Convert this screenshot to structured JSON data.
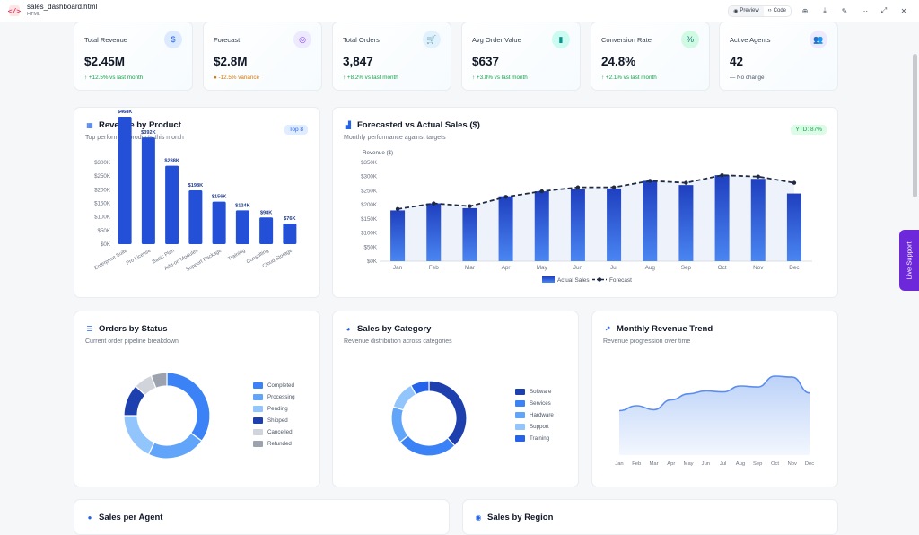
{
  "file": {
    "name": "sales_dashboard.html",
    "type": "HTML"
  },
  "toolbar": {
    "preview_label": "Preview",
    "code_label": "Code"
  },
  "live_support": "Live Support",
  "kpis": [
    {
      "label": "Total Revenue",
      "value": "$2.45M",
      "change": "↑ +12.5% vs last month",
      "icon": "dollar-icon",
      "icon_glyph": "$",
      "color": "#2563eb",
      "bg": "#dbeafe"
    },
    {
      "label": "Forecast",
      "value": "$2.8M",
      "change": "● -12.5% variance",
      "icon": "target-icon",
      "icon_glyph": "◎",
      "color": "#7c3aed",
      "bg": "#ede9fe"
    },
    {
      "label": "Total Orders",
      "value": "3,847",
      "change": "↑ +8.2% vs last month",
      "icon": "cart-icon",
      "icon_glyph": "🛒",
      "color": "#0284c7",
      "bg": "#e0f2fe"
    },
    {
      "label": "Avg Order Value",
      "value": "$637",
      "change": "↑ +3.8% vs last month",
      "icon": "receipt-icon",
      "icon_glyph": "▮",
      "color": "#0d9488",
      "bg": "#ccfbf1"
    },
    {
      "label": "Conversion Rate",
      "value": "24.8%",
      "change": "↑ +2.1% vs last month",
      "icon": "percent-icon",
      "icon_glyph": "%",
      "color": "#0f766e",
      "bg": "#d1fae5"
    },
    {
      "label": "Active Agents",
      "value": "42",
      "change": "— No change",
      "icon": "users-icon",
      "icon_glyph": "👥",
      "color": "#6d28d9",
      "bg": "#ede9fe"
    }
  ],
  "revenue_by_product": {
    "title": "Revenue by Product",
    "subtitle": "Top performing products this month",
    "badge": "Top 8"
  },
  "forecast_vs_actual": {
    "title": "Forecasted vs Actual Sales ($)",
    "subtitle": "Monthly performance against targets",
    "badge": "YTD: 87%"
  },
  "orders_by_status": {
    "title": "Orders by Status",
    "subtitle": "Current order pipeline breakdown"
  },
  "sales_by_category": {
    "title": "Sales by Category",
    "subtitle": "Revenue distribution across categories"
  },
  "monthly_trend": {
    "title": "Monthly Revenue Trend",
    "subtitle": "Revenue progression over time"
  },
  "bottom": {
    "left_title": "Sales per Agent",
    "right_title": "Sales by Region"
  },
  "chart_data": [
    {
      "type": "bar",
      "categories": [
        "Enterprise Suite",
        "Pro License",
        "Basic Plan",
        "Add-on Modules",
        "Support Package",
        "Training",
        "Consulting",
        "Cloud Storage"
      ],
      "values": [
        468,
        392,
        288,
        198,
        156,
        124,
        98,
        76
      ],
      "data_labels": [
        "$468K",
        "$392K",
        "$288K",
        "$198K",
        "$156K",
        "$124K",
        "$98K",
        "$76K"
      ],
      "ylim": [
        0,
        300
      ],
      "yticks": [
        "$300K",
        "$250K",
        "$200K",
        "$150K",
        "$100K",
        "$50K",
        "$0K"
      ],
      "color": "#2450d8"
    },
    {
      "type": "bar",
      "categories": [
        "Jan",
        "Feb",
        "Mar",
        "Apr",
        "May",
        "Jun",
        "Jul",
        "Aug",
        "Sep",
        "Oct",
        "Nov",
        "Dec"
      ],
      "ylabel": "Revenue ($)",
      "ylim": [
        0,
        350
      ],
      "yticks": [
        "$350K",
        "$300K",
        "$250K",
        "$200K",
        "$150K",
        "$100K",
        "$50K",
        "$0K"
      ],
      "series": [
        {
          "name": "Actual Sales",
          "values": [
            180,
            205,
            188,
            230,
            248,
            255,
            258,
            285,
            270,
            305,
            292,
            240
          ],
          "color": "#2a58e0"
        },
        {
          "name": "Forecast",
          "values": [
            185,
            205,
            195,
            228,
            248,
            262,
            262,
            285,
            278,
            305,
            300,
            278
          ],
          "color": "#1f2a44"
        }
      ]
    },
    {
      "type": "pie",
      "categories": [
        "Completed",
        "Processing",
        "Pending",
        "Shipped",
        "Cancelled",
        "Refunded"
      ],
      "values": [
        35,
        22,
        18,
        12,
        7,
        6
      ],
      "colors": [
        "#3b82f6",
        "#60a5fa",
        "#93c5fd",
        "#1e40af",
        "#d1d5db",
        "#9ca3af"
      ]
    },
    {
      "type": "pie",
      "categories": [
        "Software",
        "Services",
        "Hardware",
        "Support",
        "Training"
      ],
      "values": [
        38,
        26,
        16,
        12,
        8
      ],
      "colors": [
        "#1e40af",
        "#3b82f6",
        "#60a5fa",
        "#93c5fd",
        "#2563eb"
      ]
    },
    {
      "type": "area",
      "categories": [
        "Jan",
        "Feb",
        "Mar",
        "Apr",
        "May",
        "Jun",
        "Jul",
        "Aug",
        "Sep",
        "Oct",
        "Nov",
        "Dec"
      ],
      "values": [
        45,
        50,
        46,
        56,
        62,
        65,
        64,
        70,
        69,
        80,
        79,
        63
      ],
      "ylim": [
        0,
        100
      ],
      "color": "#5b8def"
    }
  ]
}
